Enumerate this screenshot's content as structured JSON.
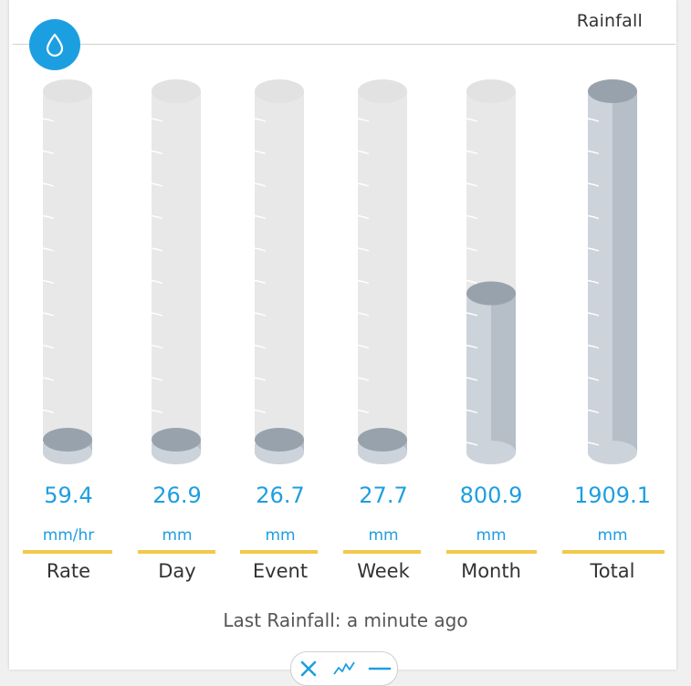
{
  "widget": {
    "title": "Rainfall",
    "icon": "raindrop-icon",
    "accent": "#1c9fe0"
  },
  "colors": {
    "value_text": "#1e9ee0",
    "underline": "#f2c94c",
    "tube_empty": "#e8e8e8",
    "fill_light": "#cdd3da",
    "fill_dark": "#b6bec8",
    "fill_top": "#98a2ac"
  },
  "gauges": [
    {
      "id": "rate",
      "value": "59.4",
      "unit": "mm/hr",
      "label": "Rate",
      "fill_fraction": 0.0
    },
    {
      "id": "day",
      "value": "26.9",
      "unit": "mm",
      "label": "Day",
      "fill_fraction": 0.0
    },
    {
      "id": "event",
      "value": "26.7",
      "unit": "mm",
      "label": "Event",
      "fill_fraction": 0.0
    },
    {
      "id": "week",
      "value": "27.7",
      "unit": "mm",
      "label": "Week",
      "fill_fraction": 0.0
    },
    {
      "id": "month",
      "value": "800.9",
      "unit": "mm",
      "label": "Month",
      "fill_fraction": 0.42
    },
    {
      "id": "total",
      "value": "1909.1",
      "unit": "mm",
      "label": "Total",
      "fill_fraction": 1.0
    }
  ],
  "footer": {
    "last_rainfall": "Last Rainfall: a minute ago"
  },
  "toolbar": {
    "close_icon": "close-icon",
    "chart_icon": "line-chart-icon",
    "minimize_icon": "minimize-icon"
  }
}
